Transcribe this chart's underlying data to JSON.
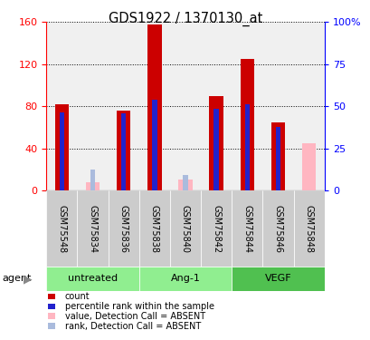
{
  "title": "GDS1922 / 1370130_at",
  "samples": [
    "GSM75548",
    "GSM75834",
    "GSM75836",
    "GSM75838",
    "GSM75840",
    "GSM75842",
    "GSM75844",
    "GSM75846",
    "GSM75848"
  ],
  "groups": [
    {
      "label": "untreated",
      "indices": [
        0,
        1,
        2
      ],
      "color": "#90EE90"
    },
    {
      "label": "Ang-1",
      "indices": [
        3,
        4,
        5
      ],
      "color": "#90EE90"
    },
    {
      "label": "VEGF",
      "indices": [
        6,
        7,
        8
      ],
      "color": "#50C050"
    }
  ],
  "count_values": [
    82,
    null,
    76,
    158,
    null,
    90,
    125,
    65,
    null
  ],
  "rank_values": [
    74,
    null,
    73,
    86,
    null,
    78,
    82,
    60,
    null
  ],
  "absent_value": [
    null,
    8,
    null,
    null,
    10,
    null,
    null,
    null,
    45
  ],
  "absent_rank": [
    null,
    20,
    null,
    null,
    15,
    null,
    null,
    null,
    null
  ],
  "ylim_left": [
    0,
    160
  ],
  "ylim_right": [
    0,
    100
  ],
  "yticks_left": [
    0,
    40,
    80,
    120,
    160
  ],
  "yticks_right": [
    0,
    25,
    50,
    75,
    100
  ],
  "ytick_labels_right": [
    "0",
    "25",
    "50",
    "75",
    "100%"
  ],
  "count_color": "#CC0000",
  "rank_color": "#2222CC",
  "absent_val_color": "#FFB6C1",
  "absent_rank_color": "#AABBDD",
  "plot_bg_color": "#F0F0F0",
  "sample_box_color": "#CCCCCC",
  "bar_width": 0.45
}
